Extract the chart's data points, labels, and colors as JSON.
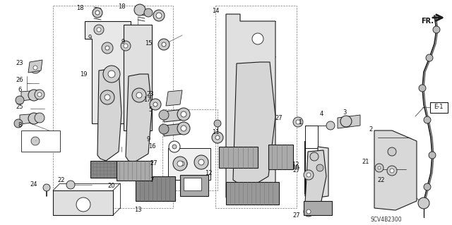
{
  "background_color": "#ffffff",
  "fig_width": 6.4,
  "fig_height": 3.19,
  "dpi": 100,
  "part_code": "SCV4B2300",
  "line_color": "#1a1a1a",
  "label_color": "#111111"
}
